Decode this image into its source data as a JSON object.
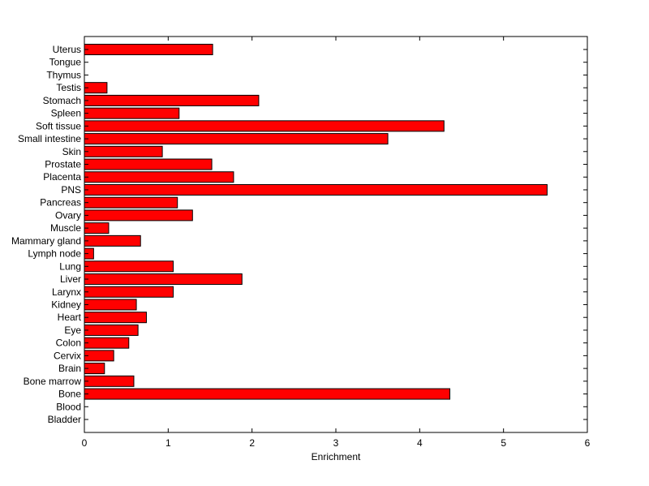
{
  "chart_data": {
    "type": "bar",
    "orientation": "horizontal",
    "title": "",
    "xlabel": "Enrichment",
    "ylabel": "",
    "xlim": [
      0,
      6
    ],
    "xticks": [
      "0",
      "1",
      "2",
      "3",
      "4",
      "5",
      "6"
    ],
    "grid": false,
    "legend": "none",
    "bar_color": "#ff0000",
    "categories": [
      "Bladder",
      "Blood",
      "Bone",
      "Bone marrow",
      "Brain",
      "Cervix",
      "Colon",
      "Eye",
      "Heart",
      "Kidney",
      "Larynx",
      "Liver",
      "Lung",
      "Lymph node",
      "Mammary gland",
      "Muscle",
      "Ovary",
      "Pancreas",
      "PNS",
      "Placenta",
      "Prostate",
      "Skin",
      "Small intestine",
      "Soft tissue",
      "Spleen",
      "Stomach",
      "Testis",
      "Thymus",
      "Tongue",
      "Uterus"
    ],
    "values": [
      0,
      0,
      4.36,
      0.59,
      0.24,
      0.35,
      0.53,
      0.64,
      0.74,
      0.62,
      1.06,
      1.88,
      1.06,
      0.11,
      0.67,
      0.29,
      1.29,
      1.11,
      5.52,
      1.78,
      1.52,
      0.93,
      3.62,
      4.29,
      1.13,
      2.08,
      0.27,
      0,
      0,
      1.53
    ]
  }
}
